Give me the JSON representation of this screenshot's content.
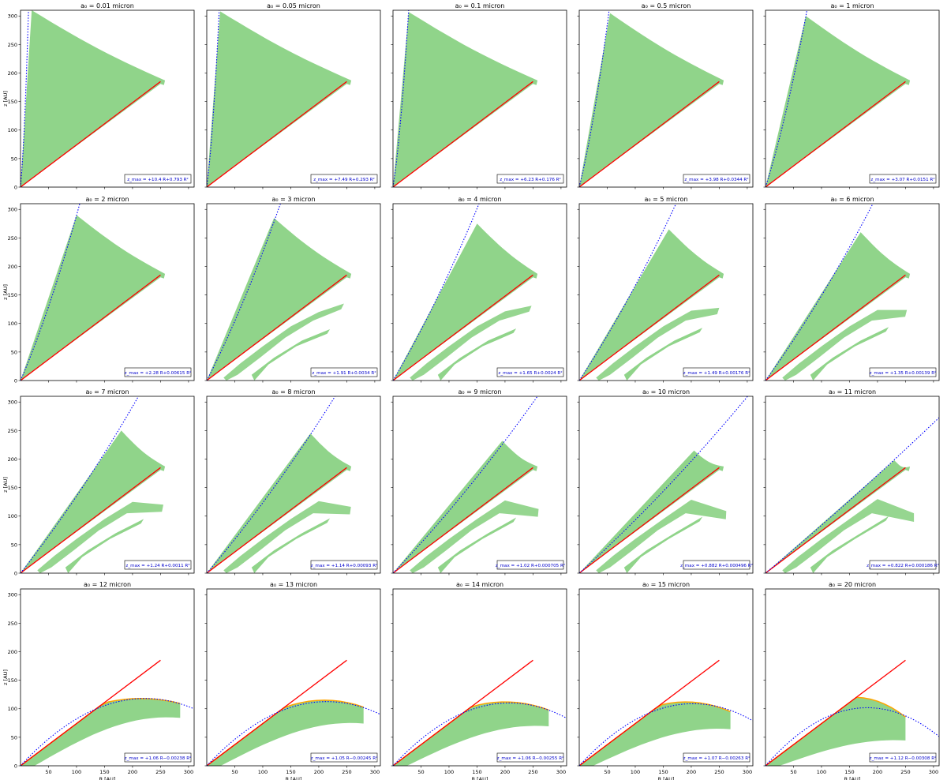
{
  "figure": {
    "xlabel": "R [AU]",
    "ylabel": "z [AU]",
    "colors": {
      "region": "#90d48a",
      "red_line": "#ff0000",
      "blue_fit": "#0000ff",
      "orange_edge": "#ffa500",
      "legend_text": "#0000cc"
    }
  },
  "chart_data": [
    {
      "type": "area",
      "title": "a₀ = 0.01 micron",
      "a0": 0.01,
      "xlim": [
        0,
        310
      ],
      "ylim": [
        0,
        310
      ],
      "xticks": [
        50,
        100,
        150,
        200,
        250,
        300
      ],
      "yticks": [
        0,
        50,
        100,
        150,
        200,
        250,
        300
      ],
      "fit": {
        "c1": 10.4,
        "c2": 0.793,
        "label": "z_max = +10.4 R+0.793 R²"
      },
      "red_line": {
        "x": [
          0,
          250
        ],
        "y": [
          0,
          185
        ]
      },
      "shape": {
        "apex_r": 20,
        "apex_z": 310,
        "tip_r": 250,
        "tip_z": 185,
        "tail": false
      },
      "xlabel": "",
      "ylabel": "z [AU]"
    },
    {
      "type": "area",
      "title": "a₀ = 0.05 micron",
      "a0": 0.05,
      "xlim": [
        0,
        310
      ],
      "ylim": [
        0,
        310
      ],
      "xticks": [
        50,
        100,
        150,
        200,
        250,
        300
      ],
      "yticks": [
        0,
        50,
        100,
        150,
        200,
        250,
        300
      ],
      "fit": {
        "c1": 7.49,
        "c2": 0.293,
        "label": "z_max = +7.49 R+0.293 R²"
      },
      "red_line": {
        "x": [
          0,
          250
        ],
        "y": [
          0,
          185
        ]
      },
      "shape": {
        "apex_r": 24,
        "apex_z": 308,
        "tip_r": 250,
        "tip_z": 185,
        "tail": false
      },
      "xlabel": "",
      "ylabel": ""
    },
    {
      "type": "area",
      "title": "a₀ = 0.1 micron",
      "a0": 0.1,
      "xlim": [
        0,
        310
      ],
      "ylim": [
        0,
        310
      ],
      "xticks": [
        50,
        100,
        150,
        200,
        250,
        300
      ],
      "yticks": [
        0,
        50,
        100,
        150,
        200,
        250,
        300
      ],
      "fit": {
        "c1": 6.23,
        "c2": 0.176,
        "label": "z_max = +6.23 R+0.176 R²"
      },
      "red_line": {
        "x": [
          0,
          250
        ],
        "y": [
          0,
          185
        ]
      },
      "shape": {
        "apex_r": 28,
        "apex_z": 307,
        "tip_r": 250,
        "tip_z": 185,
        "tail": false
      },
      "xlabel": "",
      "ylabel": ""
    },
    {
      "type": "area",
      "title": "a₀ = 0.5 micron",
      "a0": 0.5,
      "xlim": [
        0,
        310
      ],
      "ylim": [
        0,
        310
      ],
      "xticks": [
        50,
        100,
        150,
        200,
        250,
        300
      ],
      "yticks": [
        0,
        50,
        100,
        150,
        200,
        250,
        300
      ],
      "fit": {
        "c1": 3.98,
        "c2": 0.0344,
        "label": "z_max = +3.98 R+0.0344 R²"
      },
      "red_line": {
        "x": [
          0,
          250
        ],
        "y": [
          0,
          185
        ]
      },
      "shape": {
        "apex_r": 55,
        "apex_z": 305,
        "tip_r": 250,
        "tip_z": 185,
        "tail": false
      },
      "xlabel": "",
      "ylabel": ""
    },
    {
      "type": "area",
      "title": "a₀ = 1 micron",
      "a0": 1,
      "xlim": [
        0,
        310
      ],
      "ylim": [
        0,
        310
      ],
      "xticks": [
        50,
        100,
        150,
        200,
        250,
        300
      ],
      "yticks": [
        0,
        50,
        100,
        150,
        200,
        250,
        300
      ],
      "fit": {
        "c1": 3.07,
        "c2": 0.0151,
        "label": "z_max = +3.07 R+0.0151 R²"
      },
      "red_line": {
        "x": [
          0,
          250
        ],
        "y": [
          0,
          185
        ]
      },
      "shape": {
        "apex_r": 72,
        "apex_z": 300,
        "tip_r": 250,
        "tip_z": 185,
        "tail": false
      },
      "xlabel": "",
      "ylabel": ""
    },
    {
      "type": "area",
      "title": "a₀ = 2 micron",
      "a0": 2,
      "xlim": [
        0,
        310
      ],
      "ylim": [
        0,
        310
      ],
      "xticks": [
        50,
        100,
        150,
        200,
        250,
        300
      ],
      "yticks": [
        0,
        50,
        100,
        150,
        200,
        250,
        300
      ],
      "fit": {
        "c1": 2.28,
        "c2": 0.00615,
        "label": "z_max = +2.28 R+0.00615 R²"
      },
      "red_line": {
        "x": [
          0,
          250
        ],
        "y": [
          0,
          185
        ]
      },
      "shape": {
        "apex_r": 100,
        "apex_z": 290,
        "tip_r": 250,
        "tip_z": 185,
        "tail": false
      },
      "xlabel": "",
      "ylabel": "z [AU]"
    },
    {
      "type": "area",
      "title": "a₀ = 3 micron",
      "a0": 3,
      "xlim": [
        0,
        310
      ],
      "ylim": [
        0,
        310
      ],
      "xticks": [
        50,
        100,
        150,
        200,
        250,
        300
      ],
      "yticks": [
        0,
        50,
        100,
        150,
        200,
        250,
        300
      ],
      "fit": {
        "c1": 1.91,
        "c2": 0.0034,
        "label": "z_max = +1.91 R+0.0034 R²"
      },
      "red_line": {
        "x": [
          0,
          250
        ],
        "y": [
          0,
          185
        ]
      },
      "shape": {
        "apex_r": 120,
        "apex_z": 285,
        "tip_r": 250,
        "tip_z": 185,
        "tail": true
      },
      "xlabel": "",
      "ylabel": ""
    },
    {
      "type": "area",
      "title": "a₀ = 4 micron",
      "a0": 4,
      "xlim": [
        0,
        310
      ],
      "ylim": [
        0,
        310
      ],
      "xticks": [
        50,
        100,
        150,
        200,
        250,
        300
      ],
      "yticks": [
        0,
        50,
        100,
        150,
        200,
        250,
        300
      ],
      "fit": {
        "c1": 1.65,
        "c2": 0.0024,
        "label": "z_max = +1.65 R+0.0024 R²"
      },
      "red_line": {
        "x": [
          0,
          250
        ],
        "y": [
          0,
          185
        ]
      },
      "shape": {
        "apex_r": 150,
        "apex_z": 275,
        "tip_r": 250,
        "tip_z": 185,
        "tail": true
      },
      "xlabel": "",
      "ylabel": ""
    },
    {
      "type": "area",
      "title": "a₀ = 5 micron",
      "a0": 5,
      "xlim": [
        0,
        310
      ],
      "ylim": [
        0,
        310
      ],
      "xticks": [
        50,
        100,
        150,
        200,
        250,
        300
      ],
      "yticks": [
        0,
        50,
        100,
        150,
        200,
        250,
        300
      ],
      "fit": {
        "c1": 1.49,
        "c2": 0.00176,
        "label": "z_max = +1.49 R+0.00176 R²"
      },
      "red_line": {
        "x": [
          0,
          250
        ],
        "y": [
          0,
          185
        ]
      },
      "shape": {
        "apex_r": 160,
        "apex_z": 265,
        "tip_r": 250,
        "tip_z": 185,
        "tail": true
      },
      "xlabel": "",
      "ylabel": ""
    },
    {
      "type": "area",
      "title": "a₀ = 6 micron",
      "a0": 6,
      "xlim": [
        0,
        310
      ],
      "ylim": [
        0,
        310
      ],
      "xticks": [
        50,
        100,
        150,
        200,
        250,
        300
      ],
      "yticks": [
        0,
        50,
        100,
        150,
        200,
        250,
        300
      ],
      "fit": {
        "c1": 1.35,
        "c2": 0.00139,
        "label": "z_max = +1.35 R+0.00139 R²"
      },
      "red_line": {
        "x": [
          0,
          250
        ],
        "y": [
          0,
          185
        ]
      },
      "shape": {
        "apex_r": 170,
        "apex_z": 260,
        "tip_r": 250,
        "tip_z": 185,
        "tail": true
      },
      "xlabel": "",
      "ylabel": ""
    },
    {
      "type": "area",
      "title": "a₀ = 7 micron",
      "a0": 7,
      "xlim": [
        0,
        310
      ],
      "ylim": [
        0,
        310
      ],
      "xticks": [
        50,
        100,
        150,
        200,
        250,
        300
      ],
      "yticks": [
        0,
        50,
        100,
        150,
        200,
        250,
        300
      ],
      "fit": {
        "c1": 1.24,
        "c2": 0.0011,
        "label": "z_max = +1.24 R+0.0011 R²"
      },
      "red_line": {
        "x": [
          0,
          250
        ],
        "y": [
          0,
          185
        ]
      },
      "shape": {
        "apex_r": 180,
        "apex_z": 250,
        "tip_r": 250,
        "tip_z": 185,
        "tail": true
      },
      "xlabel": "",
      "ylabel": "z [AU]"
    },
    {
      "type": "area",
      "title": "a₀ = 8 micron",
      "a0": 8,
      "xlim": [
        0,
        310
      ],
      "ylim": [
        0,
        310
      ],
      "xticks": [
        50,
        100,
        150,
        200,
        250,
        300
      ],
      "yticks": [
        0,
        50,
        100,
        150,
        200,
        250,
        300
      ],
      "fit": {
        "c1": 1.14,
        "c2": 0.00093,
        "label": "z_max = +1.14 R+0.00093 R²"
      },
      "red_line": {
        "x": [
          0,
          250
        ],
        "y": [
          0,
          185
        ]
      },
      "shape": {
        "apex_r": 185,
        "apex_z": 245,
        "tip_r": 250,
        "tip_z": 185,
        "tail": true
      },
      "xlabel": "",
      "ylabel": ""
    },
    {
      "type": "area",
      "title": "a₀ = 9 micron",
      "a0": 9,
      "xlim": [
        0,
        310
      ],
      "ylim": [
        0,
        310
      ],
      "xticks": [
        50,
        100,
        150,
        200,
        250,
        300
      ],
      "yticks": [
        0,
        50,
        100,
        150,
        200,
        250,
        300
      ],
      "fit": {
        "c1": 1.02,
        "c2": 0.000705,
        "label": "z_max = +1.02 R+0.000705 R²"
      },
      "red_line": {
        "x": [
          0,
          250
        ],
        "y": [
          0,
          185
        ]
      },
      "shape": {
        "apex_r": 195,
        "apex_z": 232,
        "tip_r": 250,
        "tip_z": 185,
        "tail": true
      },
      "xlabel": "",
      "ylabel": ""
    },
    {
      "type": "area",
      "title": "a₀ = 10 micron",
      "a0": 10,
      "xlim": [
        0,
        310
      ],
      "ylim": [
        0,
        310
      ],
      "xticks": [
        50,
        100,
        150,
        200,
        250,
        300
      ],
      "yticks": [
        0,
        50,
        100,
        150,
        200,
        250,
        300
      ],
      "fit": {
        "c1": 0.882,
        "c2": 0.000496,
        "label": "z_max = +0.882 R+0.000496 R²"
      },
      "red_line": {
        "x": [
          0,
          250
        ],
        "y": [
          0,
          185
        ]
      },
      "shape": {
        "apex_r": 205,
        "apex_z": 215,
        "tip_r": 250,
        "tip_z": 185,
        "tail": true
      },
      "xlabel": "",
      "ylabel": ""
    },
    {
      "type": "area",
      "title": "a₀ = 11 micron",
      "a0": 11,
      "xlim": [
        0,
        310
      ],
      "ylim": [
        0,
        310
      ],
      "xticks": [
        50,
        100,
        150,
        200,
        250,
        300
      ],
      "yticks": [
        0,
        50,
        100,
        150,
        200,
        250,
        300
      ],
      "fit": {
        "c1": 0.822,
        "c2": 0.000186,
        "label": "z_max = +0.822 R+0.000186 R²"
      },
      "red_line": {
        "x": [
          0,
          250
        ],
        "y": [
          0,
          185
        ]
      },
      "shape": {
        "apex_r": 230,
        "apex_z": 198,
        "tip_r": 250,
        "tip_z": 185,
        "tail": true
      },
      "xlabel": "",
      "ylabel": ""
    },
    {
      "type": "area",
      "title": "a₀ = 12 micron",
      "a0": 12,
      "xlim": [
        0,
        310
      ],
      "ylim": [
        0,
        310
      ],
      "xticks": [
        50,
        100,
        150,
        200,
        250,
        300
      ],
      "yticks": [
        0,
        50,
        100,
        150,
        200,
        250,
        300
      ],
      "fit": {
        "c1": 1.06,
        "c2": -0.00238,
        "label": "z_max = +1.06 R−0.00238 R²"
      },
      "red_line": {
        "x": [
          0,
          250
        ],
        "y": [
          0,
          185
        ]
      },
      "shape": {
        "peak_r": 215,
        "peak_z": 118,
        "end_r": 285,
        "end_z": 100
      },
      "xlabel": "R [AU]",
      "ylabel": "z [AU]"
    },
    {
      "type": "area",
      "title": "a₀ = 13 micron",
      "a0": 13,
      "xlim": [
        0,
        310
      ],
      "ylim": [
        0,
        310
      ],
      "xticks": [
        50,
        100,
        150,
        200,
        250,
        300
      ],
      "yticks": [
        0,
        50,
        100,
        150,
        200,
        250,
        300
      ],
      "fit": {
        "c1": 1.05,
        "c2": -0.00245,
        "label": "z_max = +1.05 R−0.00245 R²"
      },
      "red_line": {
        "x": [
          0,
          250
        ],
        "y": [
          0,
          185
        ]
      },
      "shape": {
        "peak_r": 210,
        "peak_z": 115,
        "end_r": 280,
        "end_z": 90
      },
      "xlabel": "R [AU]",
      "ylabel": ""
    },
    {
      "type": "area",
      "title": "a₀ = 14 micron",
      "a0": 14,
      "xlim": [
        0,
        310
      ],
      "ylim": [
        0,
        310
      ],
      "xticks": [
        50,
        100,
        150,
        200,
        250,
        300
      ],
      "yticks": [
        0,
        50,
        100,
        150,
        200,
        250,
        300
      ],
      "fit": {
        "c1": 1.06,
        "c2": -0.00255,
        "label": "z_max = +1.06 R−0.00255 R²"
      },
      "red_line": {
        "x": [
          0,
          250
        ],
        "y": [
          0,
          185
        ]
      },
      "shape": {
        "peak_r": 200,
        "peak_z": 112,
        "end_r": 278,
        "end_z": 85
      },
      "xlabel": "R [AU]",
      "ylabel": ""
    },
    {
      "type": "area",
      "title": "a₀ = 15 micron",
      "a0": 15,
      "xlim": [
        0,
        310
      ],
      "ylim": [
        0,
        310
      ],
      "xticks": [
        50,
        100,
        150,
        200,
        250,
        300
      ],
      "yticks": [
        0,
        50,
        100,
        150,
        200,
        250,
        300
      ],
      "fit": {
        "c1": 1.07,
        "c2": -0.00263,
        "label": "z_max = +1.07 R−0.00263 R²"
      },
      "red_line": {
        "x": [
          0,
          250
        ],
        "y": [
          0,
          185
        ]
      },
      "shape": {
        "peak_r": 190,
        "peak_z": 112,
        "end_r": 270,
        "end_z": 80
      },
      "xlabel": "R [AU]",
      "ylabel": ""
    },
    {
      "type": "area",
      "title": "a₀ = 20 micron",
      "a0": 20,
      "xlim": [
        0,
        310
      ],
      "ylim": [
        0,
        310
      ],
      "xticks": [
        50,
        100,
        150,
        200,
        250,
        300
      ],
      "yticks": [
        0,
        50,
        100,
        150,
        200,
        250,
        300
      ],
      "fit": {
        "c1": 1.12,
        "c2": -0.00308,
        "label": "z_max = +1.12 R−0.00308 R²"
      },
      "red_line": {
        "x": [
          0,
          250
        ],
        "y": [
          0,
          185
        ]
      },
      "shape": {
        "peak_r": 160,
        "peak_z": 120,
        "end_r": 250,
        "end_z": 60
      },
      "xlabel": "R [AU]",
      "ylabel": ""
    }
  ]
}
